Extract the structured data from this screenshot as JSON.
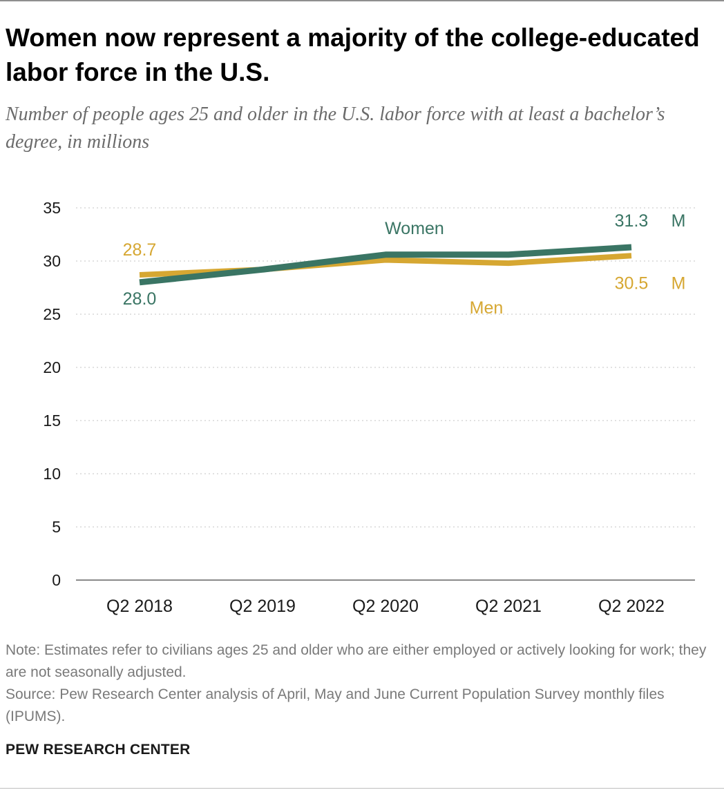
{
  "title": "Women now represent a majority of the college-educated labor force in the U.S.",
  "subtitle": "Number of people ages 25 and older in the U.S. labor force with at least a bachelor’s degree, in millions",
  "note": "Note: Estimates refer to civilians ages 25 and older who are either employed or actively looking for work; they are not seasonally adjusted.",
  "source": "Source: Pew Research Center analysis of April, May and June Current Population Survey monthly files (IPUMS).",
  "brand": "PEW RESEARCH CENTER",
  "colors": {
    "women": "#3a7564",
    "men": "#d6a732",
    "grid": "#cfcfcf",
    "axis": "#8a8a8a",
    "text": "#1a1a1a"
  },
  "chart_data": {
    "type": "line",
    "title": "Women now represent a majority of the college-educated labor force in the U.S.",
    "xlabel": "",
    "ylabel": "",
    "categories": [
      "Q2 2018",
      "Q2 2019",
      "Q2 2020",
      "Q2 2021",
      "Q2 2022"
    ],
    "ylim": [
      0,
      35
    ],
    "yticks": [
      0,
      5,
      10,
      15,
      20,
      25,
      30,
      35
    ],
    "grid": true,
    "series": [
      {
        "name": "Women",
        "values": [
          28.0,
          29.2,
          30.6,
          30.6,
          31.3
        ]
      },
      {
        "name": "Men",
        "values": [
          28.7,
          29.2,
          30.1,
          29.8,
          30.5
        ]
      }
    ],
    "series_labels": {
      "women": "Women",
      "men": "Men"
    },
    "annotations": {
      "women_start": "28.0",
      "men_start": "28.7",
      "women_end": "31.3",
      "men_end": "30.5",
      "unit": "M"
    }
  }
}
